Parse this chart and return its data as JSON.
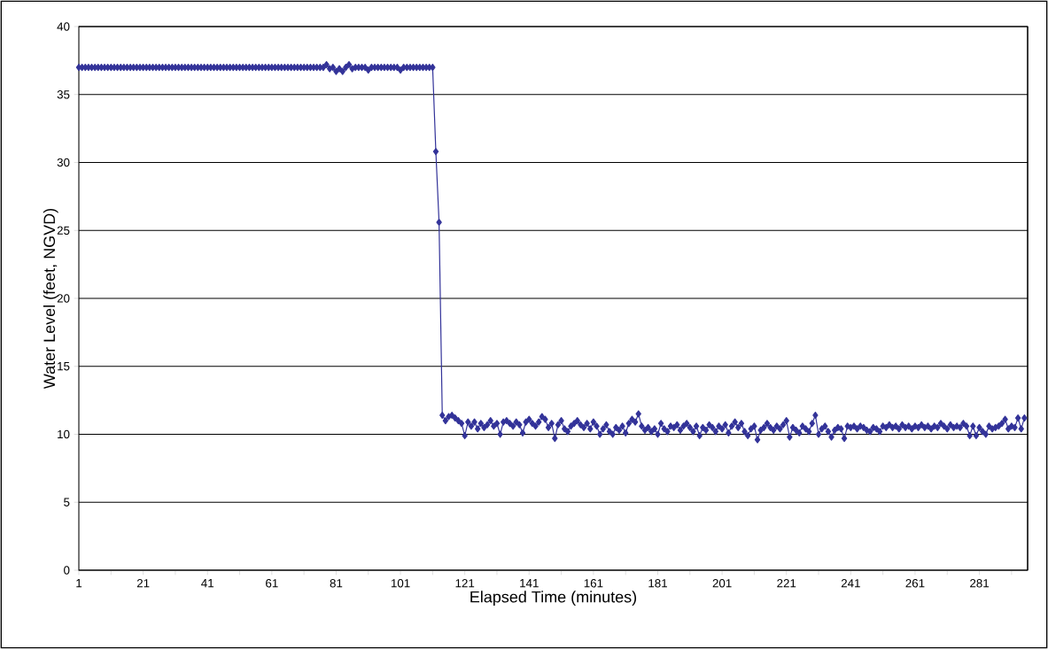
{
  "chart_data": {
    "type": "line",
    "xlabel": "Elapsed Time (minutes)",
    "ylabel": "Water Level (feet, NGVD)",
    "x": [
      1,
      2,
      3,
      4,
      5,
      6,
      7,
      8,
      9,
      10,
      11,
      12,
      13,
      14,
      15,
      16,
      17,
      18,
      19,
      20,
      21,
      22,
      23,
      24,
      25,
      26,
      27,
      28,
      29,
      30,
      31,
      32,
      33,
      34,
      35,
      36,
      37,
      38,
      39,
      40,
      41,
      42,
      43,
      44,
      45,
      46,
      47,
      48,
      49,
      50,
      51,
      52,
      53,
      54,
      55,
      56,
      57,
      58,
      59,
      60,
      61,
      62,
      63,
      64,
      65,
      66,
      67,
      68,
      69,
      70,
      71,
      72,
      73,
      74,
      75,
      76,
      77,
      78,
      79,
      80,
      81,
      82,
      83,
      84,
      85,
      86,
      87,
      88,
      89,
      90,
      91,
      92,
      93,
      94,
      95,
      96,
      97,
      98,
      99,
      100,
      101,
      102,
      103,
      104,
      105,
      106,
      107,
      108,
      109,
      110,
      111,
      112,
      113,
      114,
      115,
      116,
      117,
      118,
      119,
      120,
      121,
      122,
      123,
      124,
      125,
      126,
      127,
      128,
      129,
      130,
      131,
      132,
      133,
      134,
      135,
      136,
      137,
      138,
      139,
      140,
      141,
      142,
      143,
      144,
      145,
      146,
      147,
      148,
      149,
      150,
      151,
      152,
      153,
      154,
      155,
      156,
      157,
      158,
      159,
      160,
      161,
      162,
      163,
      164,
      165,
      166,
      167,
      168,
      169,
      170,
      171,
      172,
      173,
      174,
      175,
      176,
      177,
      178,
      179,
      180,
      181,
      182,
      183,
      184,
      185,
      186,
      187,
      188,
      189,
      190,
      191,
      192,
      193,
      194,
      195,
      196,
      197,
      198,
      199,
      200,
      201,
      202,
      203,
      204,
      205,
      206,
      207,
      208,
      209,
      210,
      211,
      212,
      213,
      214,
      215,
      216,
      217,
      218,
      219,
      220,
      221,
      222,
      223,
      224,
      225,
      226,
      227,
      228,
      229,
      230,
      231,
      232,
      233,
      234,
      235,
      236,
      237,
      238,
      239,
      240,
      241,
      242,
      243,
      244,
      245,
      246,
      247,
      248,
      249,
      250,
      251,
      252,
      253,
      254,
      255,
      256,
      257,
      258,
      259,
      260,
      261,
      262,
      263,
      264,
      265,
      266,
      267,
      268,
      269,
      270,
      271,
      272,
      273,
      274,
      275,
      276,
      277,
      278,
      279,
      280,
      281,
      282,
      283,
      284,
      285,
      286,
      287,
      288,
      289,
      290,
      291,
      292,
      293,
      294,
      295
    ],
    "series": [
      {
        "color": "#333399",
        "values": [
          37,
          37,
          37,
          37,
          37,
          37,
          37,
          37,
          37,
          37,
          37,
          37,
          37,
          37,
          37,
          37,
          37,
          37,
          37,
          37,
          37,
          37,
          37,
          37,
          37,
          37,
          37,
          37,
          37,
          37,
          37,
          37,
          37,
          37,
          37,
          37,
          37,
          37,
          37,
          37,
          37,
          37,
          37,
          37,
          37,
          37,
          37,
          37,
          37,
          37,
          37,
          37,
          37,
          37,
          37,
          37,
          37,
          37,
          37,
          37,
          37,
          37,
          37,
          37,
          37,
          37,
          37,
          37,
          37,
          37,
          37,
          37,
          37,
          37,
          37,
          37,
          37,
          37.2,
          36.9,
          37.0,
          36.7,
          36.9,
          36.7,
          37.0,
          37.2,
          36.9,
          37.0,
          37.0,
          37.0,
          37.0,
          36.8,
          37,
          37,
          37,
          37,
          37,
          37,
          37,
          37,
          37,
          36.8,
          37,
          37,
          37,
          37,
          37,
          37,
          37,
          37,
          37,
          37,
          30.8,
          25.6,
          11.4,
          11.0,
          11.3,
          11.4,
          11.2,
          11.0,
          10.8,
          9.9,
          10.9,
          10.6,
          10.9,
          10.4,
          10.8,
          10.5,
          10.7,
          11.0,
          10.6,
          10.8,
          10.0,
          10.9,
          11.0,
          10.8,
          10.6,
          10.9,
          10.7,
          10.1,
          10.9,
          11.1,
          10.8,
          10.6,
          10.9,
          11.3,
          11.1,
          10.5,
          10.8,
          9.7,
          10.7,
          11.0,
          10.4,
          10.2,
          10.6,
          10.8,
          11.0,
          10.7,
          10.5,
          10.8,
          10.4,
          10.9,
          10.6,
          10.0,
          10.4,
          10.7,
          10.2,
          10.0,
          10.5,
          10.3,
          10.6,
          10.1,
          10.8,
          11.1,
          10.9,
          11.5,
          10.6,
          10.3,
          10.5,
          10.2,
          10.4,
          10.0,
          10.8,
          10.4,
          10.2,
          10.6,
          10.5,
          10.7,
          10.3,
          10.6,
          10.8,
          10.5,
          10.2,
          10.6,
          9.9,
          10.5,
          10.3,
          10.7,
          10.5,
          10.2,
          10.6,
          10.4,
          10.7,
          10.1,
          10.6,
          10.9,
          10.5,
          10.8,
          10.2,
          9.9,
          10.4,
          10.6,
          9.6,
          10.3,
          10.5,
          10.8,
          10.5,
          10.3,
          10.6,
          10.4,
          10.7,
          11.0,
          9.8,
          10.5,
          10.3,
          10.1,
          10.6,
          10.4,
          10.2,
          10.8,
          11.4,
          10.0,
          10.4,
          10.6,
          10.2,
          9.8,
          10.3,
          10.5,
          10.4,
          9.7,
          10.6,
          10.5,
          10.6,
          10.4,
          10.6,
          10.5,
          10.3,
          10.2,
          10.5,
          10.4,
          10.2,
          10.6,
          10.5,
          10.7,
          10.5,
          10.6,
          10.4,
          10.7,
          10.5,
          10.6,
          10.4,
          10.6,
          10.5,
          10.7,
          10.5,
          10.6,
          10.4,
          10.6,
          10.5,
          10.8,
          10.6,
          10.4,
          10.7,
          10.5,
          10.6,
          10.5,
          10.8,
          10.6,
          9.9,
          10.6,
          9.9,
          10.5,
          10.2,
          10.0,
          10.6,
          10.4,
          10.5,
          10.6,
          10.8,
          11.1,
          10.4,
          10.6,
          10.5,
          11.2,
          10.4,
          11.2
        ]
      }
    ],
    "xlim": [
      1,
      296
    ],
    "ylim": [
      0,
      40
    ],
    "xticks": [
      1,
      {
        "value": 11,
        "label": null
      },
      21,
      {
        "value": 31,
        "label": null
      },
      41,
      {
        "value": 51,
        "label": null
      },
      61,
      {
        "value": 71,
        "label": null
      },
      81,
      {
        "value": 91,
        "label": null
      },
      101,
      {
        "value": 111,
        "label": null
      },
      121,
      {
        "value": 131,
        "label": null
      },
      141,
      {
        "value": 151,
        "label": null
      },
      161,
      {
        "value": 171,
        "label": null
      },
      181,
      {
        "value": 191,
        "label": null
      },
      201,
      {
        "value": 211,
        "label": null
      },
      221,
      {
        "value": 231,
        "label": null
      },
      241,
      {
        "value": 251,
        "label": null
      },
      261,
      {
        "value": 271,
        "label": null
      },
      281,
      {
        "value": 291,
        "label": null
      }
    ],
    "yticks": [
      0,
      5,
      10,
      15,
      20,
      25,
      30,
      35,
      40
    ],
    "grid": "y",
    "legend": false,
    "marker": "diamond",
    "line_style": "solid"
  }
}
